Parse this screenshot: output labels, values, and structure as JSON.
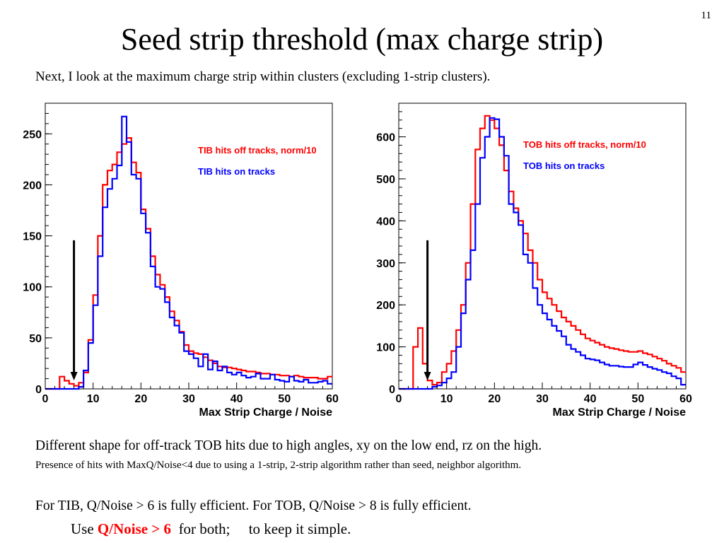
{
  "page_number": "11",
  "title": "Seed strip threshold (max charge strip)",
  "subtitle": "Next, I look at the maximum charge strip within clusters (excluding 1-strip clusters).",
  "notes": {
    "line1": "Different shape for off-track TOB hits due to high angles, xy on the low end, rz on the high.",
    "line2": "Presence of hits with MaxQ/Noise<4 due to using a 1-strip, 2-strip algorithm rather than seed, neighbor algorithm.",
    "line3": "For TIB, Q/Noise > 6 is fully efficient. For TOB, Q/Noise > 8 is fully efficient.",
    "line4_prefix": "Use ",
    "line4_highlight": "Q/Noise > 6",
    "line4_suffix": "  for both;     to keep it simple."
  },
  "colors": {
    "off_tracks": "#ff0000",
    "on_tracks": "#0000ff",
    "highlight": "#ff0000"
  },
  "chart_data": [
    {
      "type": "line",
      "step": true,
      "xlabel": "Max Strip Charge / Noise",
      "ylabel": "",
      "xlim": [
        0,
        60
      ],
      "ylim": [
        0,
        280
      ],
      "xticks": [
        0,
        10,
        20,
        30,
        40,
        50,
        60
      ],
      "yticks": [
        0,
        50,
        100,
        150,
        200,
        250
      ],
      "bin_width": 1,
      "arrow_x": 6,
      "legend_position": "top-right",
      "series": [
        {
          "name": "TIB hits off tracks, norm/10",
          "color": "#ff0000",
          "values": [
            0,
            0,
            0,
            12,
            8,
            5,
            3,
            6,
            16,
            48,
            92,
            150,
            200,
            214,
            220,
            232,
            240,
            246,
            222,
            212,
            176,
            157,
            130,
            112,
            102,
            90,
            76,
            67,
            56,
            43,
            37,
            35,
            34,
            31,
            28,
            25,
            22,
            21,
            21,
            20,
            19,
            18,
            17,
            17,
            16,
            15,
            15,
            14,
            14,
            13,
            13,
            12,
            13,
            12,
            11,
            11,
            11,
            10,
            10,
            12
          ]
        },
        {
          "name": "TIB hits on tracks",
          "color": "#0000ff",
          "values": [
            0,
            0,
            0,
            0,
            0,
            0,
            0,
            2,
            18,
            45,
            82,
            130,
            178,
            196,
            206,
            219,
            267,
            242,
            210,
            206,
            172,
            153,
            120,
            100,
            98,
            85,
            70,
            62,
            55,
            37,
            34,
            30,
            22,
            34,
            19,
            27,
            18,
            22,
            16,
            14,
            16,
            13,
            11,
            12,
            15,
            10,
            10,
            14,
            9,
            8,
            7,
            12,
            8,
            7,
            9,
            6,
            6,
            7,
            8,
            5
          ]
        }
      ]
    },
    {
      "type": "line",
      "step": true,
      "xlabel": "Max Strip Charge / Noise",
      "ylabel": "",
      "xlim": [
        0,
        60
      ],
      "ylim": [
        0,
        680
      ],
      "xticks": [
        0,
        10,
        20,
        30,
        40,
        50,
        60
      ],
      "yticks": [
        0,
        100,
        200,
        300,
        400,
        500,
        600
      ],
      "bin_width": 1,
      "arrow_x": 6,
      "legend_position": "top-right",
      "series": [
        {
          "name": "TOB hits off tracks, norm/10",
          "color": "#ff0000",
          "values": [
            0,
            0,
            0,
            100,
            145,
            60,
            20,
            10,
            15,
            40,
            60,
            90,
            140,
            200,
            300,
            440,
            570,
            620,
            650,
            640,
            620,
            580,
            520,
            470,
            430,
            400,
            370,
            330,
            300,
            260,
            230,
            215,
            200,
            185,
            170,
            160,
            150,
            140,
            130,
            120,
            115,
            110,
            105,
            100,
            97,
            95,
            92,
            90,
            88,
            88,
            90,
            85,
            82,
            77,
            72,
            67,
            60,
            55,
            50,
            40
          ]
        },
        {
          "name": "TOB hits on tracks",
          "color": "#0000ff",
          "values": [
            0,
            0,
            0,
            0,
            0,
            0,
            0,
            5,
            8,
            15,
            25,
            40,
            100,
            180,
            260,
            330,
            440,
            550,
            600,
            645,
            642,
            600,
            555,
            440,
            420,
            390,
            320,
            300,
            240,
            200,
            180,
            165,
            150,
            138,
            125,
            105,
            95,
            88,
            80,
            72,
            70,
            68,
            63,
            58,
            55,
            55,
            53,
            52,
            52,
            58,
            63,
            57,
            52,
            48,
            45,
            40,
            37,
            30,
            25,
            10
          ]
        }
      ]
    }
  ]
}
